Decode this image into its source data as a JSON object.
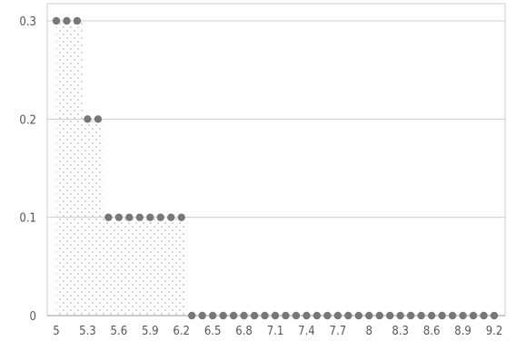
{
  "chart_data": {
    "type": "area",
    "title": "",
    "xlabel": "",
    "ylabel": "",
    "ylim": [
      0,
      0.3
    ],
    "yticks": [
      "0",
      "0.1",
      "0.2",
      "0.3"
    ],
    "xtick_labels": [
      "5",
      "5.3",
      "5.6",
      "5.9",
      "6.2",
      "6.5",
      "6.8",
      "7.1",
      "7.4",
      "7.7",
      "8",
      "8.3",
      "8.6",
      "8.9",
      "9.2"
    ],
    "grid": "horizontal",
    "series": [
      {
        "x": [
          5.0,
          5.1,
          5.2,
          5.3,
          5.4,
          5.5,
          5.6,
          5.7,
          5.8,
          5.9,
          6.0,
          6.1,
          6.2,
          6.3,
          6.4,
          6.5,
          6.6,
          6.7,
          6.8,
          6.9,
          7.0,
          7.1,
          7.2,
          7.3,
          7.4,
          7.5,
          7.6,
          7.7,
          7.8,
          7.9,
          8.0,
          8.1,
          8.2,
          8.3,
          8.4,
          8.5,
          8.6,
          8.7,
          8.8,
          8.9,
          9.0,
          9.1,
          9.2
        ],
        "y": [
          0.3,
          0.3,
          0.3,
          0.2,
          0.2,
          0.1,
          0.1,
          0.1,
          0.1,
          0.1,
          0.1,
          0.1,
          0.1,
          0,
          0,
          0,
          0,
          0,
          0,
          0,
          0,
          0,
          0,
          0,
          0,
          0,
          0,
          0,
          0,
          0,
          0,
          0,
          0,
          0,
          0,
          0,
          0,
          0,
          0,
          0,
          0,
          0,
          0
        ]
      }
    ],
    "colors": {
      "marker": "#777777",
      "grid": "#cccccc",
      "axis": "#999999",
      "fill_dot": "#b5b5b5"
    }
  }
}
